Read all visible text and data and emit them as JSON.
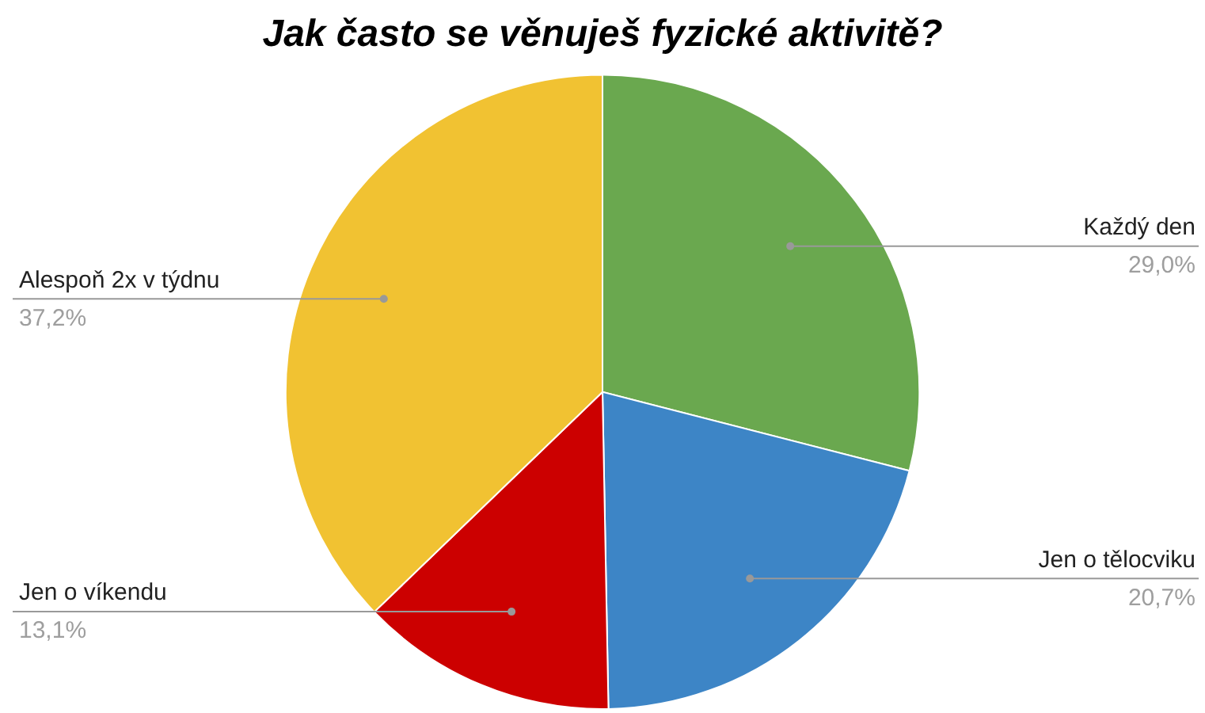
{
  "chart_data": {
    "type": "pie",
    "title": "Jak často se věnuješ fyzické aktivitě?",
    "categories": [
      "Každý den",
      "Jen o tělocviku",
      "Jen o víkendu",
      "Alespoň 2x v týdnu"
    ],
    "values": [
      29.0,
      20.7,
      13.1,
      37.2
    ],
    "value_labels": [
      "29,0%",
      "20,7%",
      "13,1%",
      "37,2%"
    ],
    "colors": [
      "#6aa84f",
      "#3d85c6",
      "#cc0000",
      "#f1c232"
    ],
    "legend": false
  }
}
